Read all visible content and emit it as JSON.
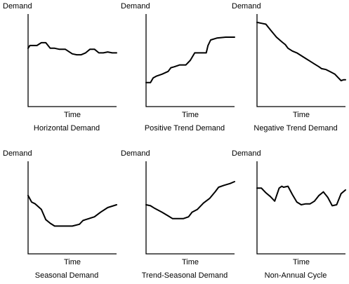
{
  "chart_data": [
    {
      "type": "line",
      "title": "Horizontal Demand",
      "xlabel": "Time",
      "ylabel": "Demand",
      "ylim": [
        0,
        100
      ],
      "x": [
        0,
        0.02,
        0.1,
        0.15,
        0.2,
        0.25,
        0.3,
        0.35,
        0.42,
        0.5,
        0.55,
        0.6,
        0.65,
        0.7,
        0.75,
        0.8,
        0.85,
        0.9,
        0.95,
        1
      ],
      "values": [
        63,
        66,
        66,
        69,
        69,
        63,
        63,
        62,
        62,
        57,
        56,
        56,
        58,
        62,
        62,
        58,
        58,
        59,
        58,
        58
      ]
    },
    {
      "type": "line",
      "title": "Positive Trend Demand",
      "xlabel": "Time",
      "ylabel": "Demand",
      "ylim": [
        0,
        100
      ],
      "x": [
        0,
        0.05,
        0.08,
        0.12,
        0.18,
        0.25,
        0.28,
        0.32,
        0.38,
        0.45,
        0.5,
        0.55,
        0.6,
        0.68,
        0.7,
        0.73,
        0.8,
        0.9,
        1
      ],
      "values": [
        26,
        26,
        31,
        33,
        35,
        38,
        42,
        43,
        45,
        45,
        50,
        58,
        58,
        58,
        66,
        72,
        74,
        75,
        75
      ]
    },
    {
      "type": "line",
      "title": "Negative Trend Demand",
      "xlabel": "Time",
      "ylabel": "Demand",
      "ylim": [
        0,
        100
      ],
      "x": [
        0,
        0.05,
        0.1,
        0.15,
        0.22,
        0.28,
        0.32,
        0.35,
        0.4,
        0.45,
        0.5,
        0.55,
        0.6,
        0.65,
        0.7,
        0.73,
        0.78,
        0.82,
        0.88,
        0.92,
        0.95,
        0.98,
        1
      ],
      "values": [
        91,
        90,
        89,
        83,
        75,
        70,
        67,
        63,
        60,
        58,
        55,
        52,
        49,
        46,
        43,
        41,
        40,
        38,
        35,
        31,
        28,
        29,
        29
      ]
    },
    {
      "type": "line",
      "title": "Seasonal Demand",
      "xlabel": "Time",
      "ylabel": "Demand",
      "ylim": [
        0,
        100
      ],
      "x": [
        0,
        0.04,
        0.08,
        0.15,
        0.2,
        0.25,
        0.3,
        0.35,
        0.4,
        0.5,
        0.58,
        0.62,
        0.65,
        0.75,
        0.82,
        0.9,
        1
      ],
      "values": [
        63,
        56,
        54,
        48,
        37,
        33,
        30,
        30,
        30,
        30,
        32,
        36,
        37,
        40,
        45,
        50,
        53
      ]
    },
    {
      "type": "line",
      "title": "Trend-Seasonal Demand",
      "xlabel": "Time",
      "ylabel": "Demand",
      "ylim": [
        0,
        100
      ],
      "x": [
        0,
        0.05,
        0.1,
        0.18,
        0.25,
        0.3,
        0.35,
        0.42,
        0.48,
        0.52,
        0.58,
        0.65,
        0.72,
        0.78,
        0.82,
        0.88,
        0.95,
        1
      ],
      "values": [
        53,
        52,
        49,
        45,
        41,
        38,
        38,
        38,
        40,
        45,
        48,
        55,
        60,
        67,
        72,
        74,
        76,
        78
      ]
    },
    {
      "type": "line",
      "title": "Non-Annual Cycle",
      "xlabel": "Time",
      "ylabel": "Demand",
      "ylim": [
        0,
        100
      ],
      "x": [
        0,
        0.05,
        0.1,
        0.15,
        0.2,
        0.25,
        0.28,
        0.3,
        0.35,
        0.4,
        0.45,
        0.5,
        0.55,
        0.6,
        0.65,
        0.7,
        0.75,
        0.8,
        0.85,
        0.9,
        0.95,
        1
      ],
      "values": [
        71,
        71,
        66,
        62,
        57,
        71,
        73,
        72,
        73,
        64,
        56,
        53,
        54,
        54,
        57,
        63,
        67,
        61,
        52,
        53,
        65,
        69
      ]
    }
  ]
}
